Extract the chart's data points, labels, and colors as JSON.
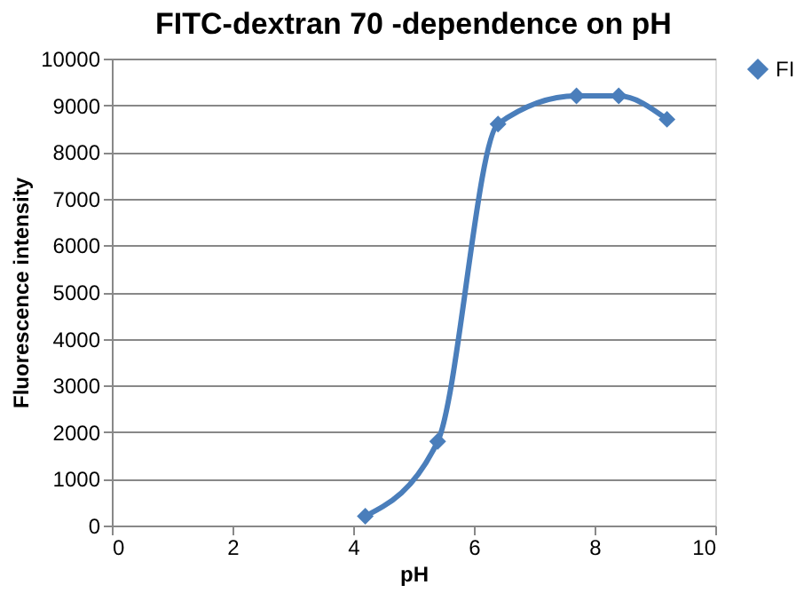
{
  "chart_data": {
    "type": "line",
    "title": "FITC-dextran 70 -dependence on pH",
    "xlabel": "pH",
    "ylabel": "Fluorescence  intensity",
    "x": [
      4.2,
      5.4,
      6.4,
      7.7,
      8.4,
      9.2
    ],
    "series": [
      {
        "name": "FI",
        "color": "#4a7ebb",
        "values": [
          200,
          1800,
          8600,
          9200,
          9200,
          8700
        ]
      }
    ],
    "xlim": [
      0,
      10
    ],
    "xticks": [
      0,
      2,
      4,
      6,
      8,
      10
    ],
    "ylim": [
      0,
      10000
    ],
    "yticks": [
      0,
      1000,
      2000,
      3000,
      4000,
      5000,
      6000,
      7000,
      8000,
      9000,
      10000
    ],
    "grid": "y",
    "legend": "right",
    "marker": "diamond",
    "line_style": "solid"
  }
}
